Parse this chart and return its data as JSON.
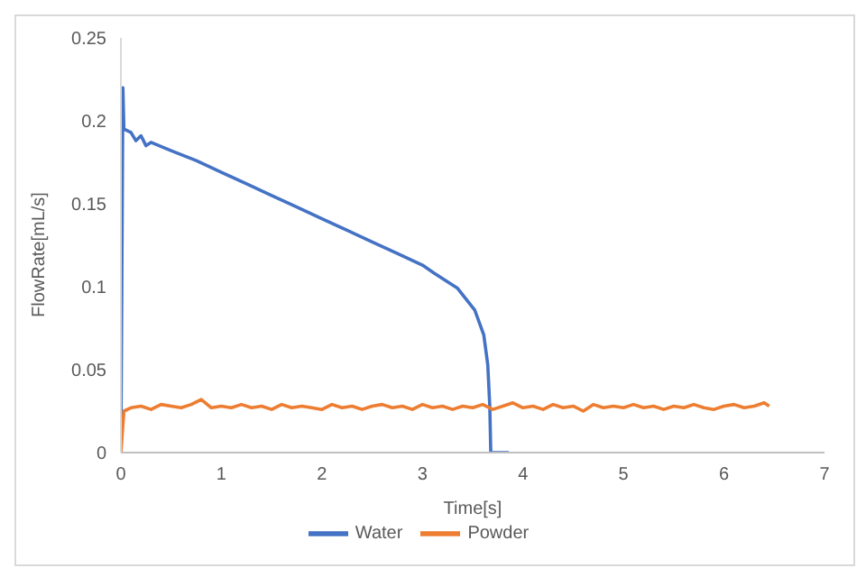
{
  "chart_data": {
    "type": "line",
    "xlabel": "Time[s]",
    "ylabel": "FlowRate[mL/s]",
    "xlim": [
      0,
      7
    ],
    "xticks": [
      0,
      1,
      2,
      3,
      4,
      5,
      6,
      7
    ],
    "ylim": [
      0,
      0.25
    ],
    "yticks": [
      0,
      0.05,
      0.1,
      0.15,
      0.2,
      0.25
    ],
    "grid": false,
    "legend": "bottom",
    "marker": "none",
    "line_style": "solid",
    "series": [
      {
        "name": "Water",
        "color": "#4472c4",
        "x": [
          0,
          0.02,
          0.03,
          0.1,
          0.15,
          0.2,
          0.25,
          0.3,
          0.5,
          0.75,
          1,
          1.25,
          1.5,
          1.75,
          2,
          2.25,
          2.5,
          2.75,
          3,
          3.12,
          3.35,
          3.52,
          3.61,
          3.65,
          3.67,
          3.68,
          3.86
        ],
        "values": [
          0,
          0.22,
          0.195,
          0.193,
          0.188,
          0.191,
          0.185,
          0.187,
          0.182,
          0.176,
          0.169,
          0.162,
          0.155,
          0.148,
          0.141,
          0.134,
          0.127,
          0.12,
          0.113,
          0.108,
          0.099,
          0.086,
          0.071,
          0.053,
          0.028,
          0,
          0
        ]
      },
      {
        "name": "Powder",
        "color": "#ed7d31",
        "x": [
          0,
          0.03,
          0.1,
          0.2,
          0.3,
          0.4,
          0.5,
          0.6,
          0.7,
          0.8,
          0.9,
          1,
          1.1,
          1.2,
          1.3,
          1.4,
          1.5,
          1.6,
          1.7,
          1.8,
          1.9,
          2,
          2.1,
          2.2,
          2.3,
          2.4,
          2.5,
          2.6,
          2.7,
          2.8,
          2.9,
          3,
          3.1,
          3.2,
          3.3,
          3.4,
          3.5,
          3.6,
          3.7,
          3.8,
          3.9,
          4,
          4.1,
          4.2,
          4.3,
          4.4,
          4.5,
          4.6,
          4.7,
          4.8,
          4.9,
          5,
          5.1,
          5.2,
          5.3,
          5.4,
          5.5,
          5.6,
          5.7,
          5.8,
          5.9,
          6,
          6.1,
          6.2,
          6.3,
          6.4,
          6.45
        ],
        "values": [
          0,
          0.025,
          0.027,
          0.028,
          0.026,
          0.029,
          0.028,
          0.027,
          0.029,
          0.032,
          0.027,
          0.028,
          0.027,
          0.029,
          0.027,
          0.028,
          0.026,
          0.029,
          0.027,
          0.028,
          0.027,
          0.026,
          0.029,
          0.027,
          0.028,
          0.026,
          0.028,
          0.029,
          0.027,
          0.028,
          0.026,
          0.029,
          0.027,
          0.028,
          0.026,
          0.028,
          0.027,
          0.029,
          0.026,
          0.028,
          0.03,
          0.027,
          0.028,
          0.026,
          0.029,
          0.027,
          0.028,
          0.025,
          0.029,
          0.027,
          0.028,
          0.027,
          0.029,
          0.027,
          0.028,
          0.026,
          0.028,
          0.027,
          0.029,
          0.027,
          0.026,
          0.028,
          0.029,
          0.027,
          0.028,
          0.03,
          0.028
        ]
      }
    ]
  }
}
